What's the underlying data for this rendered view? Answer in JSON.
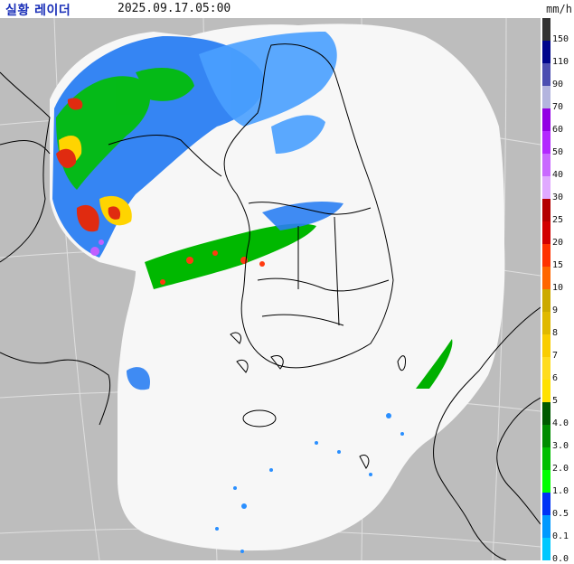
{
  "header": {
    "title": "실황 레이더",
    "timestamp": "2025.09.17.05:00",
    "unit": "mm/h"
  },
  "legend": {
    "items": [
      {
        "label": "150",
        "color": "#333333"
      },
      {
        "label": "110",
        "color": "#00058c"
      },
      {
        "label": "90",
        "color": "#4c4eb1"
      },
      {
        "label": "70",
        "color": "#b3b4de"
      },
      {
        "label": "60",
        "color": "#9300e4"
      },
      {
        "label": "50",
        "color": "#b329ff"
      },
      {
        "label": "40",
        "color": "#c969ff"
      },
      {
        "label": "30",
        "color": "#e0a9ff"
      },
      {
        "label": "25",
        "color": "#b40000"
      },
      {
        "label": "20",
        "color": "#d20000"
      },
      {
        "label": "15",
        "color": "#ff3200"
      },
      {
        "label": "10",
        "color": "#ff6600"
      },
      {
        "label": "9",
        "color": "#ccaa00"
      },
      {
        "label": "8",
        "color": "#e0b900"
      },
      {
        "label": "7",
        "color": "#f9cd00"
      },
      {
        "label": "6",
        "color": "#ffdc1f"
      },
      {
        "label": "5",
        "color": "#ffe100"
      },
      {
        "label": "4.0",
        "color": "#005a00"
      },
      {
        "label": "3.0",
        "color": "#008c00"
      },
      {
        "label": "2.0",
        "color": "#00be00"
      },
      {
        "label": "1.0",
        "color": "#00ff00"
      },
      {
        "label": "0.5",
        "color": "#0033f5"
      },
      {
        "label": "0.1",
        "color": "#0099ff"
      },
      {
        "label": "0.0",
        "color": "#00c8ff"
      }
    ]
  },
  "colors": {
    "outside_coverage": "#bdbdbd",
    "coverage_area": "#f7f7f7",
    "coastline": "#000000",
    "grid": "#e8e8e8"
  }
}
